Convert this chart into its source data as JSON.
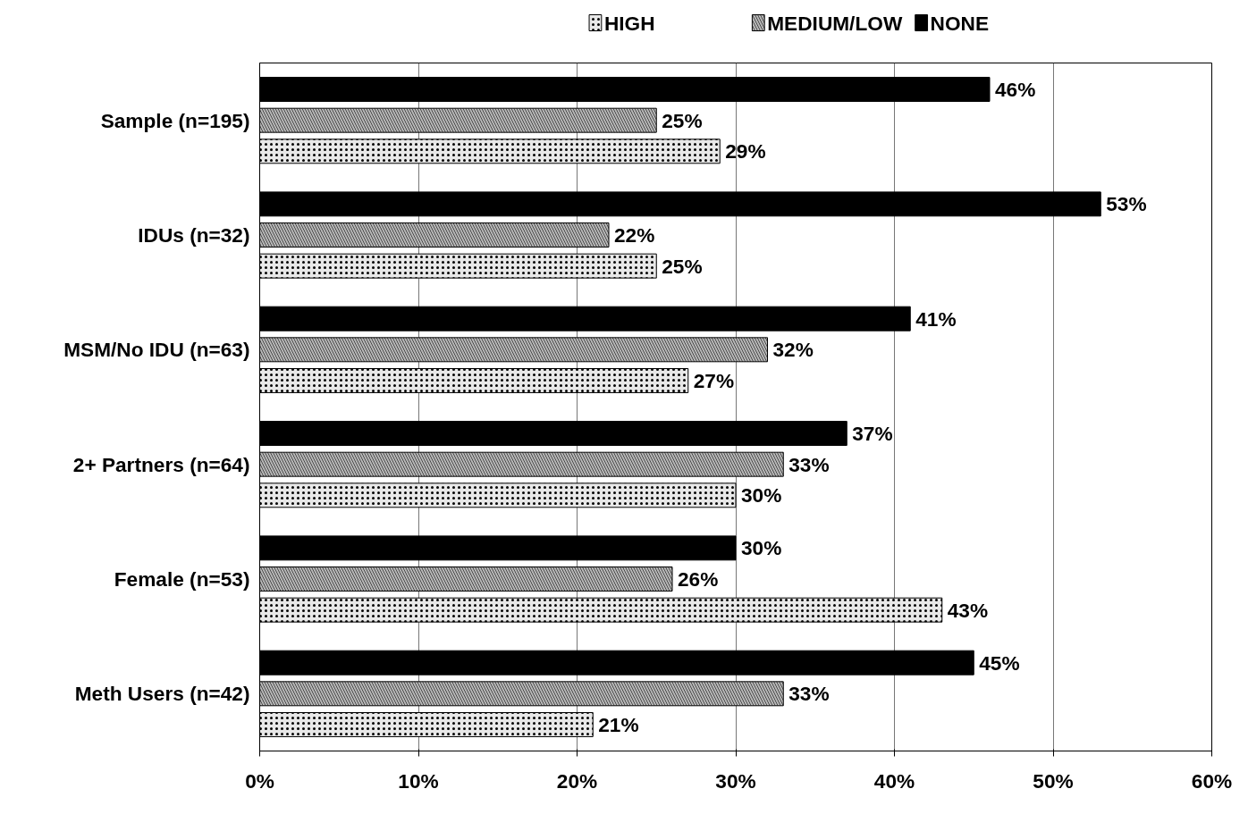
{
  "chart_data": {
    "type": "bar",
    "orientation": "horizontal",
    "categories": [
      "Sample (n=195)",
      "IDUs (n=32)",
      "MSM/No IDU (n=63)",
      "2+ Partners (n=64)",
      "Female (n=53)",
      "Meth Users (n=42)"
    ],
    "series": [
      {
        "name": "HIGH",
        "color": "#e8e8e8",
        "values": [
          29,
          25,
          27,
          30,
          43,
          21
        ],
        "value_labels": [
          "29%",
          "25%",
          "27%",
          "30%",
          "43%",
          "21%"
        ]
      },
      {
        "name": "MEDIUM/LOW",
        "color": "#b8b8b8",
        "values": [
          25,
          22,
          32,
          33,
          26,
          33
        ],
        "value_labels": [
          "25%",
          "22%",
          "32%",
          "33%",
          "26%",
          "33%"
        ]
      },
      {
        "name": "NONE",
        "color": "#000000",
        "values": [
          46,
          53,
          41,
          37,
          30,
          45
        ],
        "value_labels": [
          "46%",
          "53%",
          "41%",
          "37%",
          "30%",
          "45%"
        ]
      }
    ],
    "xlim": [
      0,
      60
    ],
    "xticks": [
      {
        "value": 0,
        "label": "0%"
      },
      {
        "value": 10,
        "label": "10%"
      },
      {
        "value": 20,
        "label": "20%"
      },
      {
        "value": 30,
        "label": "30%"
      },
      {
        "value": 40,
        "label": "40%"
      },
      {
        "value": 50,
        "label": "50%"
      },
      {
        "value": 60,
        "label": "60%"
      }
    ],
    "grid": "x",
    "legend": "top"
  }
}
